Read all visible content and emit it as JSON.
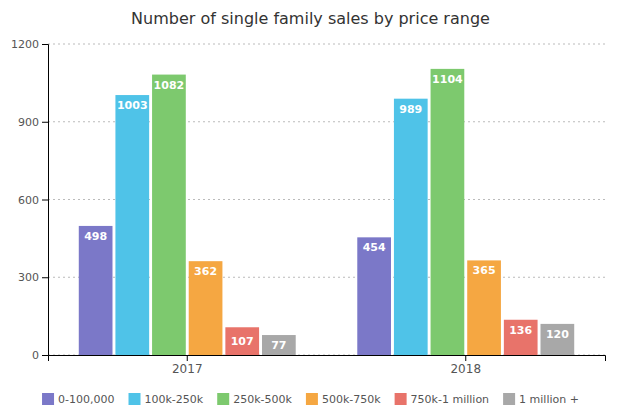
{
  "chart_data": {
    "type": "bar",
    "title": "Number of single family sales by price range",
    "categories": [
      "2017",
      "2018"
    ],
    "series": [
      {
        "name": "0-100,000",
        "color": "#7b78c8",
        "values": [
          498,
          454
        ]
      },
      {
        "name": "100k-250k",
        "color": "#4fc3e8",
        "values": [
          1003,
          989
        ]
      },
      {
        "name": "250k-500k",
        "color": "#7dc96e",
        "values": [
          1082,
          1104
        ]
      },
      {
        "name": "500k-750k",
        "color": "#f5a742",
        "values": [
          362,
          365
        ]
      },
      {
        "name": "750k-1 million",
        "color": "#e8736a",
        "values": [
          107,
          136
        ]
      },
      {
        "name": "1 million +",
        "color": "#a8a8a8",
        "values": [
          77,
          120
        ]
      }
    ],
    "ylim": [
      0,
      1200
    ],
    "yticks": [
      0,
      300,
      600,
      900,
      1200
    ],
    "grid": true,
    "legend": "bottom",
    "data_labels": true
  }
}
